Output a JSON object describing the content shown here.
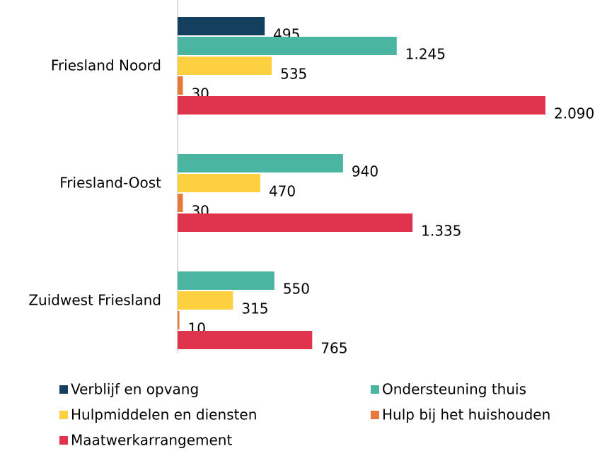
{
  "chart_data": {
    "type": "bar",
    "orientation": "horizontal",
    "categories": [
      "Friesland Noord",
      "Friesland-Oost",
      "Zuidwest Friesland"
    ],
    "series": [
      {
        "name": "Verblijf en opvang",
        "color": "#143f5e",
        "values": [
          495,
          null,
          null
        ],
        "value_labels": [
          "495",
          null,
          null
        ]
      },
      {
        "name": "Ondersteuning thuis",
        "color": "#4ab5a0",
        "values": [
          1245,
          940,
          550
        ],
        "value_labels": [
          "1.245",
          "940",
          "550"
        ]
      },
      {
        "name": "Hulpmiddelen en diensten",
        "color": "#fdd03f",
        "values": [
          535,
          470,
          315
        ],
        "value_labels": [
          "535",
          "470",
          "315"
        ]
      },
      {
        "name": "Hulp bij het huishouden",
        "color": "#e8773a",
        "values": [
          30,
          30,
          10
        ],
        "value_labels": [
          "30",
          "30",
          "10"
        ]
      },
      {
        "name": "Maatwerkarrangement",
        "color": "#e0344e",
        "values": [
          2090,
          1335,
          765
        ],
        "value_labels": [
          "2.090",
          "1.335",
          "765"
        ]
      }
    ]
  }
}
